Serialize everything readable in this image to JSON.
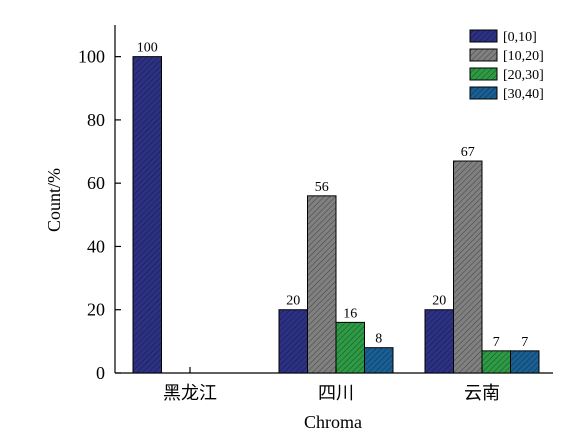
{
  "chart_data": {
    "type": "bar",
    "title": "",
    "xlabel": "Chroma",
    "ylabel": "Count/%",
    "categories": [
      "黑龙江",
      "四川",
      "云南"
    ],
    "ylim": [
      0,
      110
    ],
    "yticks": [
      0,
      20,
      40,
      60,
      80,
      100
    ],
    "grid": false,
    "legend_position": "top-right",
    "series": [
      {
        "name": "[0,10]",
        "values": [
          100,
          20,
          20
        ],
        "color": "#2c3183",
        "hatch": "diagonal"
      },
      {
        "name": "[10,20]",
        "values": [
          0,
          56,
          67
        ],
        "color": "#808080",
        "hatch": "diagonal"
      },
      {
        "name": "[20,30]",
        "values": [
          0,
          16,
          7
        ],
        "color": "#2e9a45",
        "hatch": "diagonal"
      },
      {
        "name": "[30,40]",
        "values": [
          0,
          8,
          7
        ],
        "color": "#1a5f93",
        "hatch": "diagonal"
      }
    ],
    "data_labels": [
      [
        "100",
        "20",
        "20"
      ],
      [
        "",
        "56",
        "67"
      ],
      [
        "",
        "16",
        "7"
      ],
      [
        "",
        "8",
        "7"
      ]
    ]
  }
}
